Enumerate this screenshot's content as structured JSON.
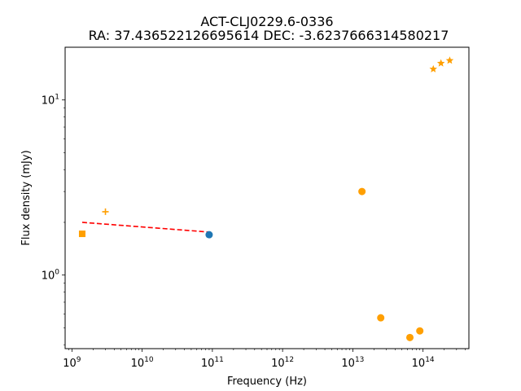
{
  "chart_data": {
    "type": "scatter",
    "title": "ACT-CLJ0229.6-0336",
    "subtitle": "RA: 37.436522126695614 DEC: -3.6237666314580217",
    "xlabel": "Frequency (Hz)",
    "ylabel": "Flux density (mJy)",
    "x_scale": "log",
    "y_scale": "log",
    "xlim": [
      800000000.0,
      450000000000000.0
    ],
    "ylim": [
      0.38,
      20.0
    ],
    "x_ticks": [
      {
        "base": "10",
        "exp": "9",
        "value": 1000000000.0
      },
      {
        "base": "10",
        "exp": "10",
        "value": 10000000000.0
      },
      {
        "base": "10",
        "exp": "11",
        "value": 100000000000.0
      },
      {
        "base": "10",
        "exp": "12",
        "value": 1000000000000.0
      },
      {
        "base": "10",
        "exp": "13",
        "value": 10000000000000.0
      },
      {
        "base": "10",
        "exp": "14",
        "value": 100000000000000.0
      }
    ],
    "y_ticks": [
      {
        "base": "10",
        "exp": "0",
        "value": 1
      },
      {
        "base": "10",
        "exp": "1",
        "value": 10
      }
    ],
    "grid": false,
    "series": [
      {
        "marker": "square",
        "color": "#ff9f00",
        "points": [
          {
            "x": 1400000000.0,
            "y": 1.72
          }
        ]
      },
      {
        "marker": "plus",
        "color": "#ff9f00",
        "points": [
          {
            "x": 3000000000.0,
            "y": 2.3
          }
        ]
      },
      {
        "marker": "circle",
        "color": "#1f77b4",
        "points": [
          {
            "x": 90000000000.0,
            "y": 1.7
          }
        ]
      },
      {
        "marker": "circle",
        "color": "#ff9f00",
        "points": [
          {
            "x": 13500000000000.0,
            "y": 3.0
          },
          {
            "x": 25000000000000.0,
            "y": 0.57
          },
          {
            "x": 65000000000000.0,
            "y": 0.44
          },
          {
            "x": 90000000000000.0,
            "y": 0.48
          }
        ]
      },
      {
        "marker": "star",
        "color": "#ff9f00",
        "points": [
          {
            "x": 140000000000000.0,
            "y": 15.0
          },
          {
            "x": 180000000000000.0,
            "y": 16.2
          },
          {
            "x": 240000000000000.0,
            "y": 16.8
          }
        ]
      }
    ],
    "fit_line": {
      "style": "dashed",
      "color": "#ff0000",
      "points": [
        {
          "x": 1400000000.0,
          "y": 2.0
        },
        {
          "x": 90000000000.0,
          "y": 1.76
        }
      ]
    }
  }
}
